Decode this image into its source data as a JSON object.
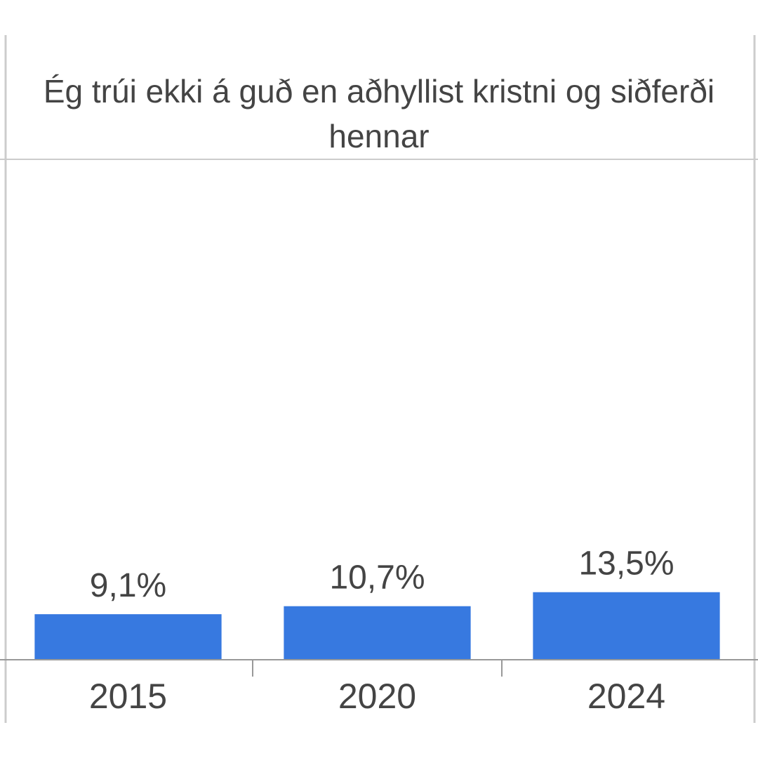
{
  "chart_data": {
    "type": "bar",
    "title": "Ég trúi ekki á guð en aðhyllist kristni og siðferði hennar",
    "categories": [
      "2015",
      "2020",
      "2024"
    ],
    "values": [
      9.1,
      10.7,
      13.5
    ],
    "value_labels": [
      "9,1%",
      "10,7%",
      "13,5%"
    ],
    "color": "#3779e0",
    "ylim": [
      0,
      100
    ]
  }
}
